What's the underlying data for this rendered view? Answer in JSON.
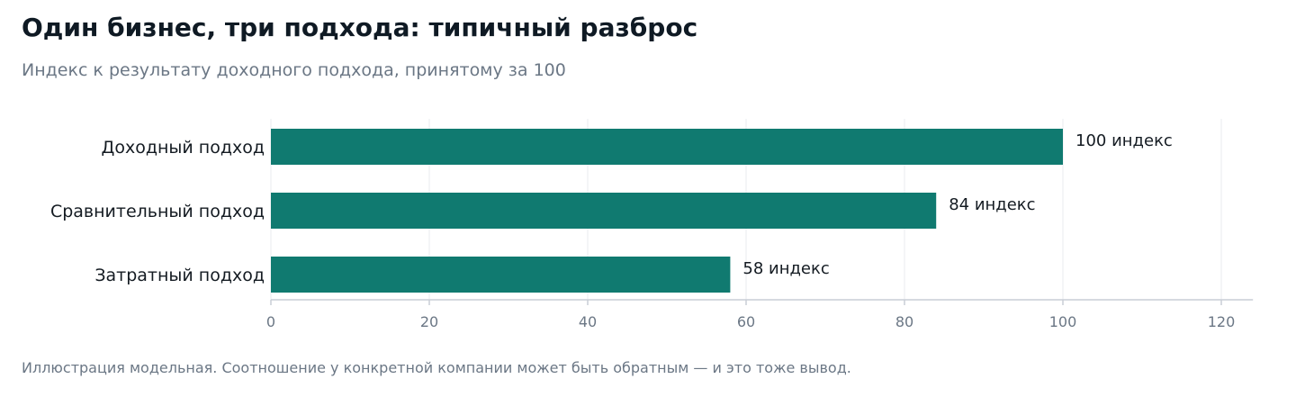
{
  "chart_data": {
    "type": "bar",
    "orientation": "horizontal",
    "title": "Один бизнес, три подхода: типичный разброс",
    "subtitle": "Индекс к результату доходного подхода, принятому за 100",
    "footnote": "Иллюстрация модельная. Соотношение у конкретной компании может быть обратным — и это тоже вывод.",
    "categories": [
      "Доходный подход",
      "Сравнительный подход",
      "Затратный подход"
    ],
    "values": [
      100,
      84,
      58
    ],
    "data_labels": [
      "100 индекс",
      "84 индекс",
      "58 индекс"
    ],
    "xlim": [
      0,
      124
    ],
    "xticks": [
      0,
      20,
      40,
      60,
      80,
      100,
      120
    ],
    "xlabel": "",
    "ylabel": "",
    "grid": true,
    "legend": "none",
    "colors": {
      "bar": "#107a70",
      "grid": "#e8ebef",
      "axis": "#c9ced6"
    }
  }
}
